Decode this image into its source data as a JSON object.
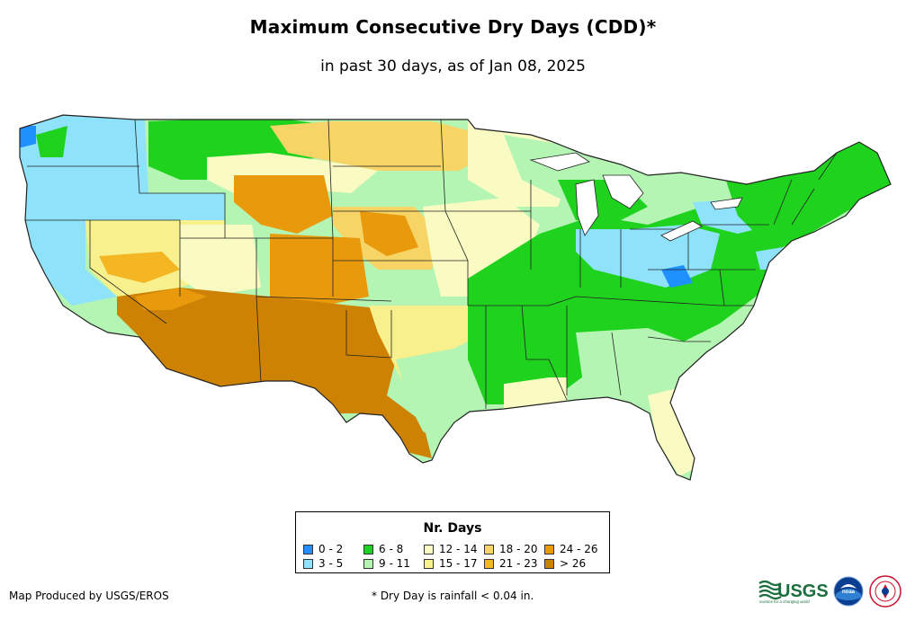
{
  "header": {
    "title": "Maximum Consecutive Dry Days (CDD)*",
    "subtitle": "in past 30 days, as of Jan 08, 2025"
  },
  "legend": {
    "title": "Nr. Days",
    "items": [
      {
        "label": "0 - 2",
        "color": "#1e90ff"
      },
      {
        "label": "3 - 5",
        "color": "#8ee3fb"
      },
      {
        "label": "6 - 8",
        "color": "#1ed21e"
      },
      {
        "label": "9 - 11",
        "color": "#b4f5b4"
      },
      {
        "label": "12 - 14",
        "color": "#fafac3"
      },
      {
        "label": "15 - 17",
        "color": "#f7f08c"
      },
      {
        "label": "18 - 20",
        "color": "#f6d465"
      },
      {
        "label": "21 - 23",
        "color": "#f4b623"
      },
      {
        "label": "24 - 26",
        "color": "#e99a0c"
      },
      {
        "label": "> 26",
        "color": "#cd8204"
      }
    ]
  },
  "footer": {
    "credit": "Map Produced by USGS/EROS",
    "footnote": "* Dry Day is rainfall < 0.04 in.",
    "usgs_logo_text": "USGS",
    "usgs_tagline": "science for a changing world",
    "noaa_logo_text": "noaa"
  },
  "colors": {
    "state_border": "#222222",
    "background": "#ffffff"
  }
}
